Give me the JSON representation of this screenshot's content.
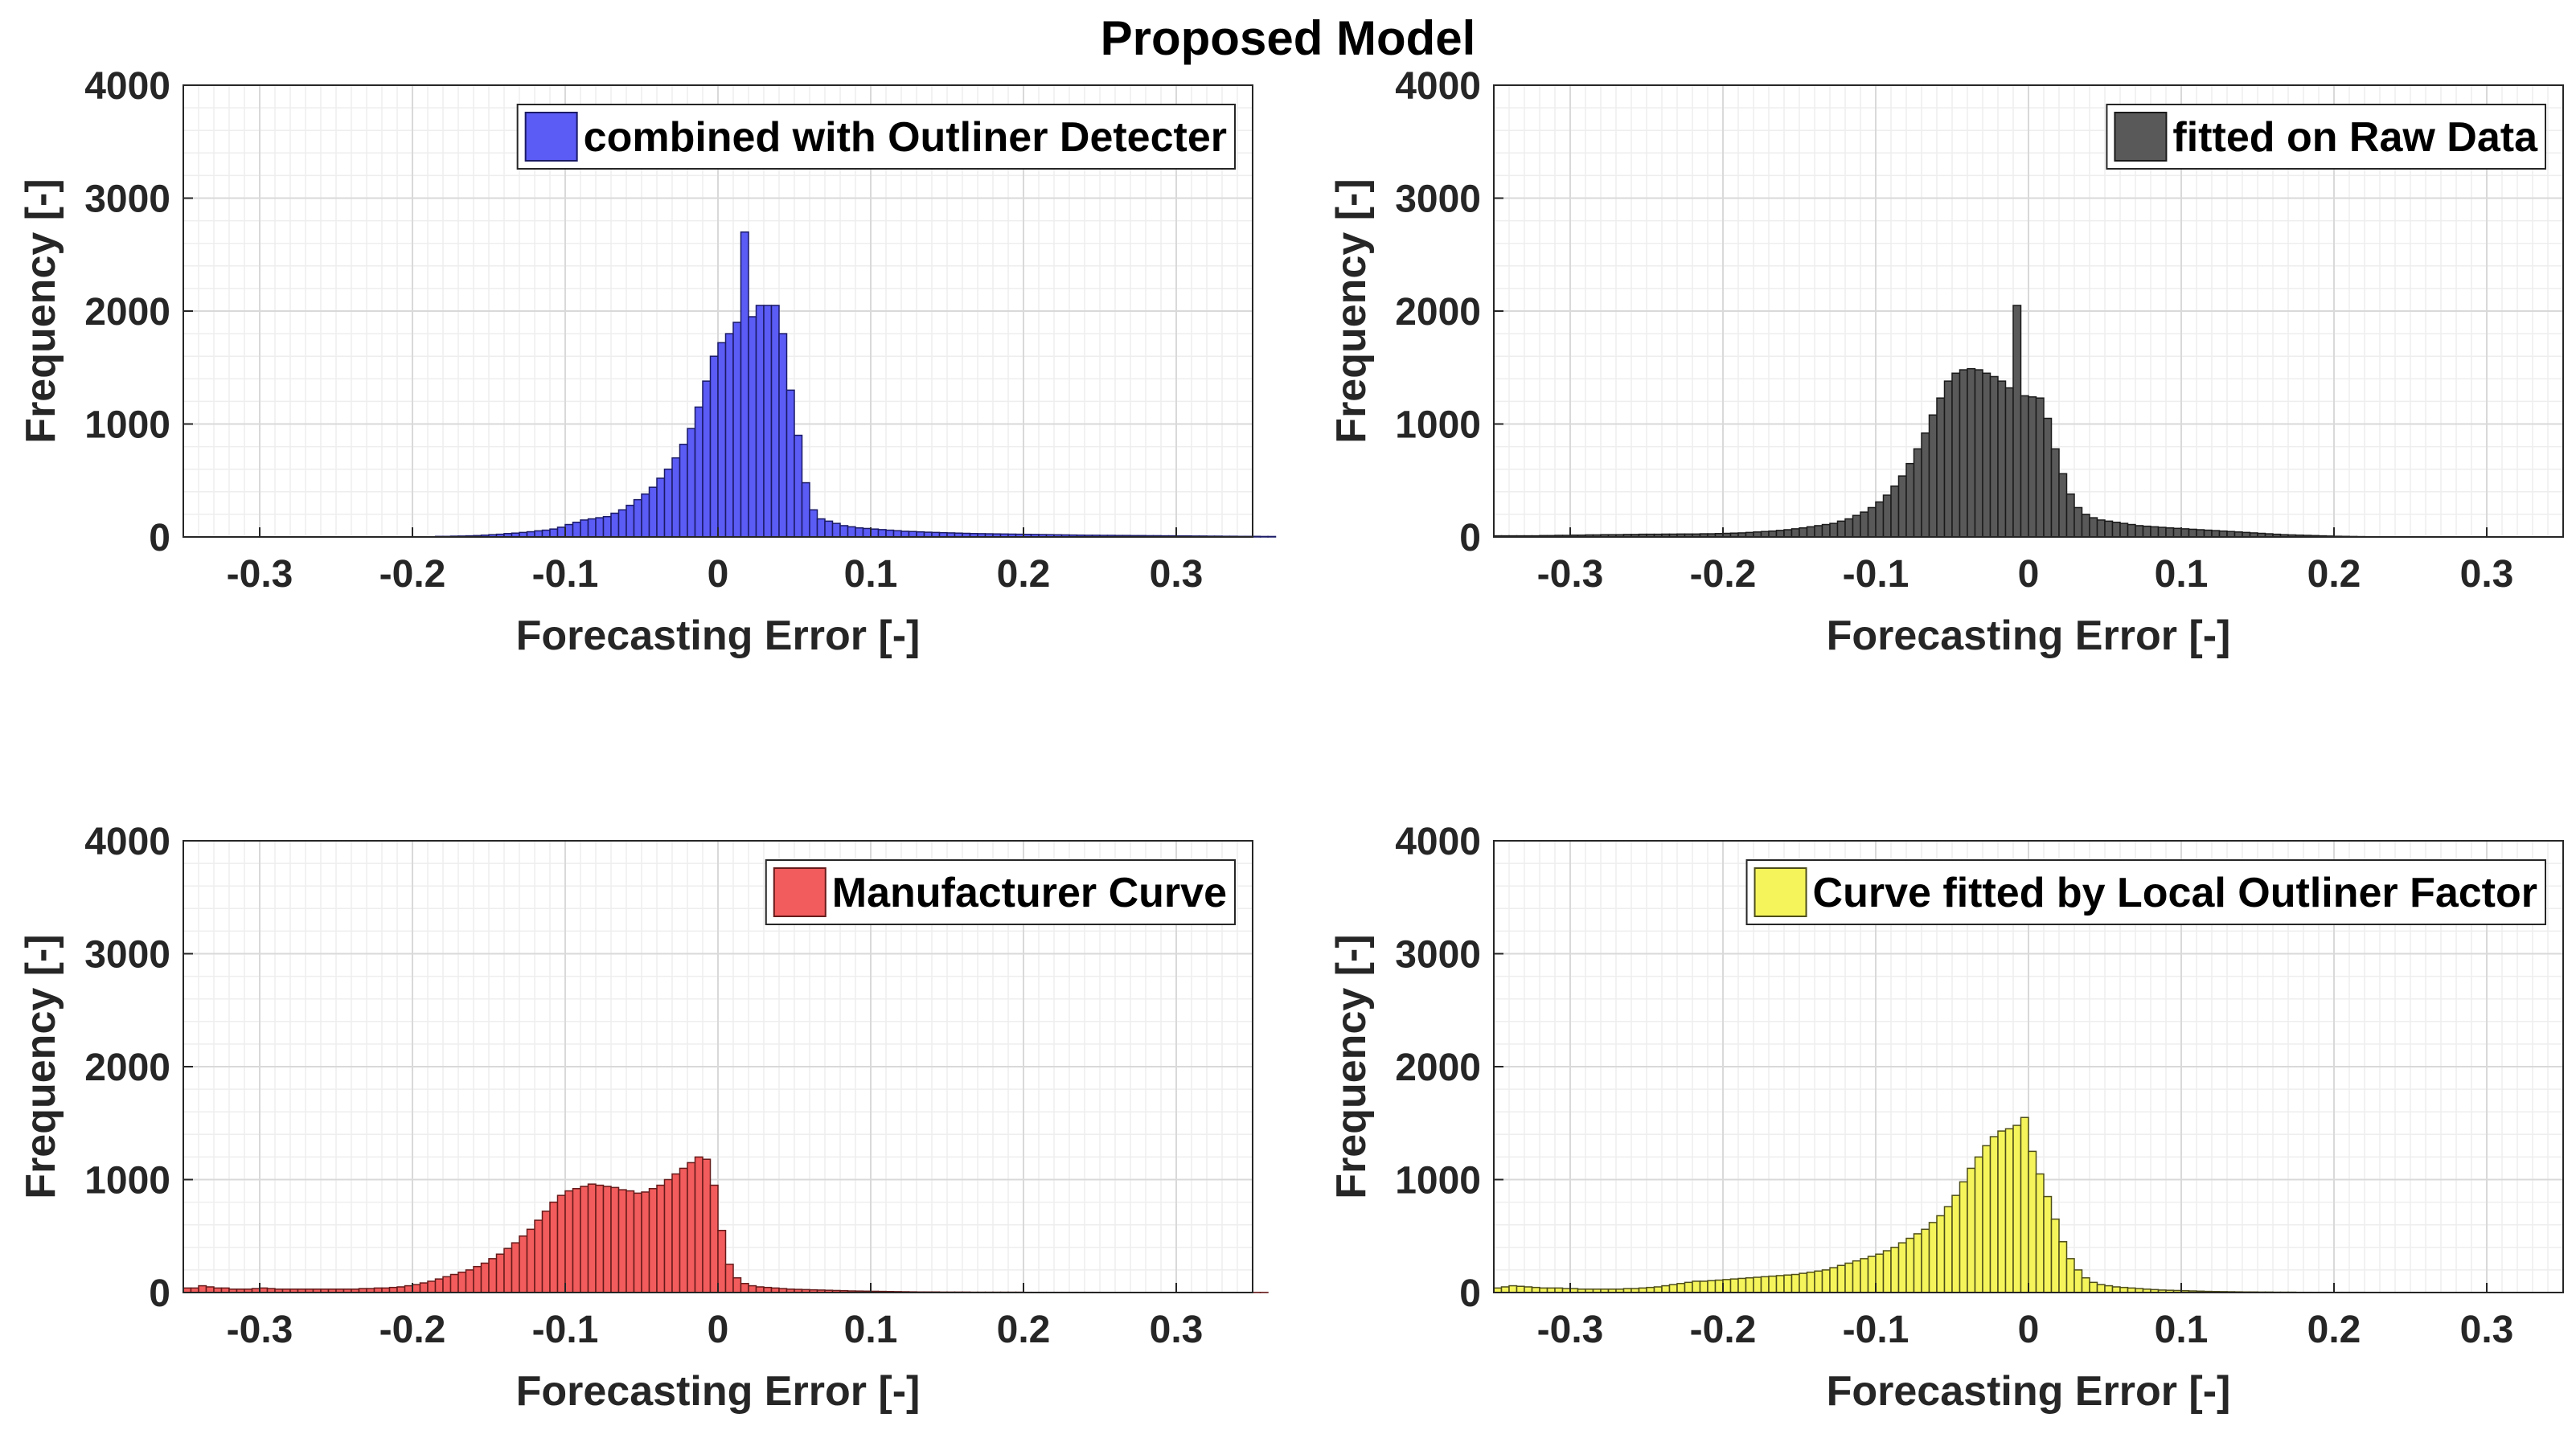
{
  "figure_title": "Proposed Model",
  "chart_data": [
    {
      "type": "bar",
      "legend": "combined with Outliner Detecter",
      "color": "#5b5bf5",
      "edge_color": "#1a1a66",
      "xlabel": "Forecasting Error [-]",
      "ylabel": "Frequency [-]",
      "xlim": [
        -0.35,
        0.35
      ],
      "ylim": [
        0,
        4000
      ],
      "xticks": [
        "-0.3",
        "-0.2",
        "-0.1",
        "0",
        "0.1",
        "0.2",
        "0.3"
      ],
      "yticks": [
        "0",
        "1000",
        "2000",
        "3000",
        "4000"
      ],
      "grid": true,
      "legend_position": "top-right",
      "bin_width": 0.005,
      "bin_start": -0.35,
      "values": [
        0,
        0,
        0,
        0,
        0,
        0,
        0,
        0,
        0,
        0,
        0,
        0,
        0,
        0,
        0,
        0,
        0,
        0,
        0,
        0,
        0,
        0,
        0,
        0,
        0,
        0,
        0,
        0,
        0,
        0,
        0,
        0,
        0,
        5,
        5,
        7,
        8,
        10,
        12,
        16,
        20,
        24,
        30,
        34,
        40,
        46,
        54,
        60,
        70,
        86,
        110,
        130,
        150,
        160,
        170,
        180,
        210,
        240,
        280,
        330,
        380,
        440,
        520,
        600,
        700,
        820,
        960,
        1150,
        1380,
        1600,
        1720,
        1800,
        1900,
        2700,
        1950,
        2050,
        2050,
        2050,
        1800,
        1300,
        900,
        480,
        240,
        160,
        140,
        120,
        100,
        90,
        80,
        75,
        70,
        65,
        60,
        55,
        50,
        48,
        45,
        42,
        40,
        38,
        36,
        34,
        32,
        30,
        29,
        28,
        27,
        26,
        25,
        24,
        23,
        22,
        21,
        20,
        19,
        18,
        17,
        16,
        15,
        15,
        14,
        14,
        13,
        13,
        12,
        12,
        11,
        11,
        10,
        10,
        9,
        9,
        8,
        8,
        7,
        7,
        6,
        6,
        5,
        5,
        5,
        4,
        4
      ]
    },
    {
      "type": "bar",
      "legend": "fitted on Raw Data",
      "color": "#595959",
      "edge_color": "#1a1a1a",
      "xlabel": "Forecasting Error [-]",
      "ylabel": "Frequency [-]",
      "xlim": [
        -0.35,
        0.35
      ],
      "ylim": [
        0,
        4000
      ],
      "xticks": [
        "-0.3",
        "-0.2",
        "-0.1",
        "0",
        "0.1",
        "0.2",
        "0.3"
      ],
      "yticks": [
        "0",
        "1000",
        "2000",
        "3000",
        "4000"
      ],
      "grid": true,
      "legend_position": "top-right",
      "bin_width": 0.005,
      "bin_start": -0.35,
      "values": [
        10,
        10,
        10,
        10,
        10,
        10,
        12,
        12,
        14,
        14,
        16,
        16,
        18,
        18,
        20,
        20,
        20,
        22,
        22,
        24,
        24,
        24,
        25,
        25,
        26,
        26,
        26,
        28,
        28,
        30,
        32,
        34,
        36,
        40,
        44,
        48,
        52,
        58,
        64,
        72,
        80,
        90,
        100,
        110,
        120,
        140,
        160,
        190,
        220,
        260,
        310,
        370,
        450,
        540,
        650,
        780,
        920,
        1080,
        1230,
        1380,
        1450,
        1480,
        1490,
        1480,
        1450,
        1420,
        1380,
        1320,
        2050,
        1250,
        1240,
        1230,
        1050,
        780,
        560,
        380,
        260,
        200,
        170,
        150,
        140,
        130,
        120,
        110,
        100,
        95,
        90,
        85,
        80,
        76,
        72,
        68,
        64,
        60,
        56,
        52,
        48,
        44,
        40,
        36,
        32,
        28,
        24,
        20,
        18,
        16,
        14,
        12,
        10,
        8,
        6,
        5,
        4,
        3,
        2,
        2,
        2,
        2,
        1,
        1,
        1,
        1,
        1,
        0,
        0,
        0,
        0,
        0,
        0,
        0,
        0,
        0,
        0,
        0,
        0,
        0,
        0,
        0,
        0,
        0,
        0,
        0,
        0
      ]
    },
    {
      "type": "bar",
      "legend": "Manufacturer Curve",
      "color": "#f25c5c",
      "edge_color": "#661a1a",
      "xlabel": "Forecasting Error [-]",
      "ylabel": "Frequency [-]",
      "xlim": [
        -0.35,
        0.35
      ],
      "ylim": [
        0,
        4000
      ],
      "xticks": [
        "-0.3",
        "-0.2",
        "-0.1",
        "0",
        "0.1",
        "0.2",
        "0.3"
      ],
      "yticks": [
        "0",
        "1000",
        "2000",
        "3000",
        "4000"
      ],
      "grid": true,
      "legend_position": "top-right",
      "bin_width": 0.005,
      "bin_start": -0.35,
      "values": [
        40,
        40,
        60,
        50,
        40,
        40,
        30,
        30,
        30,
        35,
        40,
        35,
        30,
        30,
        30,
        30,
        30,
        30,
        30,
        30,
        30,
        30,
        30,
        35,
        35,
        40,
        40,
        45,
        50,
        60,
        70,
        85,
        100,
        120,
        140,
        160,
        180,
        200,
        230,
        260,
        300,
        340,
        390,
        440,
        500,
        560,
        640,
        720,
        800,
        860,
        900,
        920,
        940,
        960,
        950,
        940,
        930,
        910,
        900,
        880,
        890,
        920,
        950,
        1000,
        1050,
        1100,
        1150,
        1200,
        1180,
        950,
        550,
        250,
        130,
        80,
        60,
        50,
        45,
        40,
        35,
        30,
        28,
        26,
        24,
        22,
        20,
        18,
        16,
        14,
        13,
        12,
        11,
        10,
        9,
        8,
        7,
        6,
        5,
        5,
        5,
        4,
        4,
        4,
        4,
        3,
        3,
        3,
        3,
        3,
        3,
        3,
        2,
        2,
        2,
        2,
        2,
        2,
        2,
        2,
        2,
        2,
        1,
        1,
        1,
        1,
        1,
        1,
        1,
        1,
        1,
        1,
        1,
        1,
        1,
        1,
        1,
        1,
        1,
        1,
        1,
        1,
        1,
        1
      ]
    },
    {
      "type": "bar",
      "legend": "Curve fitted by Local Outliner Factor",
      "color": "#f5f55b",
      "edge_color": "#4d4d1a",
      "xlabel": "Forecasting Error [-]",
      "ylabel": "Frequency [-]",
      "xlim": [
        -0.35,
        0.35
      ],
      "ylim": [
        0,
        4000
      ],
      "xticks": [
        "-0.3",
        "-0.2",
        "-0.1",
        "0",
        "0.1",
        "0.2",
        "0.3"
      ],
      "yticks": [
        "0",
        "1000",
        "2000",
        "3000",
        "4000"
      ],
      "grid": true,
      "legend_position": "top-right",
      "bin_width": 0.005,
      "bin_start": -0.35,
      "values": [
        40,
        50,
        60,
        55,
        50,
        45,
        40,
        40,
        40,
        35,
        35,
        30,
        30,
        30,
        30,
        30,
        30,
        35,
        35,
        40,
        45,
        50,
        60,
        70,
        80,
        90,
        100,
        100,
        105,
        110,
        115,
        120,
        125,
        130,
        135,
        140,
        145,
        150,
        155,
        160,
        170,
        180,
        190,
        200,
        220,
        240,
        260,
        280,
        300,
        320,
        340,
        370,
        400,
        440,
        480,
        520,
        560,
        620,
        680,
        760,
        860,
        980,
        1100,
        1200,
        1300,
        1380,
        1430,
        1450,
        1480,
        1550,
        1250,
        1050,
        850,
        650,
        450,
        300,
        200,
        130,
        90,
        70,
        60,
        50,
        45,
        40,
        35,
        30,
        26,
        22,
        20,
        18,
        16,
        14,
        12,
        10,
        9,
        8,
        7,
        6,
        5,
        5,
        4,
        4,
        3,
        3,
        3,
        2,
        2,
        2,
        2,
        2,
        2,
        2,
        2,
        2,
        1,
        1,
        1,
        1,
        1,
        1,
        1,
        1,
        1,
        1,
        1,
        1,
        1,
        1,
        1,
        1,
        1,
        1,
        1,
        1,
        1,
        1,
        1,
        1,
        1,
        1
      ]
    }
  ]
}
